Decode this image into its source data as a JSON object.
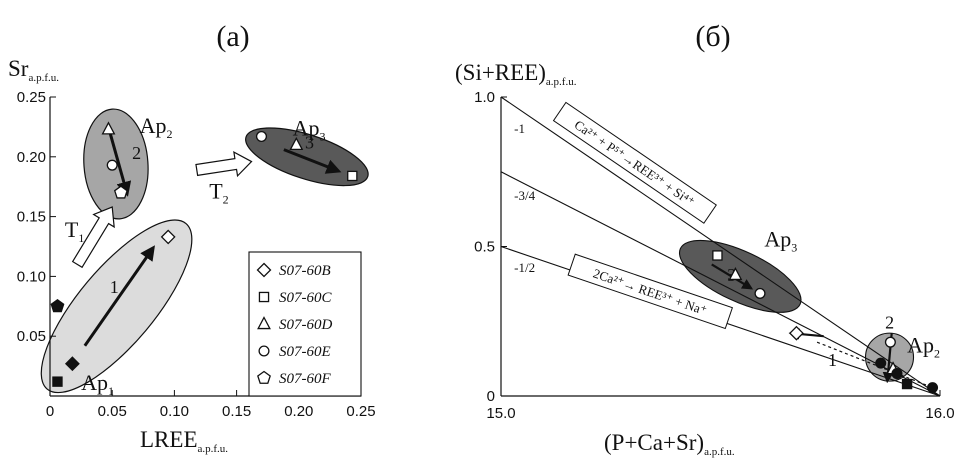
{
  "chart_data": [
    {
      "panel": "(a)",
      "type": "scatter",
      "xlabel": "LREE",
      "xlabel_sub": "a.p.f.u.",
      "ylabel": "Sr",
      "ylabel_sub": "a.p.f.u.",
      "xlim": [
        0,
        0.25
      ],
      "ylim": [
        0,
        0.25
      ],
      "x_ticks": [
        "0",
        "0.05",
        "0.10",
        "0.15",
        "0.20",
        "0.25"
      ],
      "y_ticks": [
        "0.05",
        "0.10",
        "0.15",
        "0.20",
        "0.25"
      ],
      "groups": [
        {
          "name": "Ap",
          "sub": "1",
          "label_at": [
            0.025,
            0.005
          ],
          "fill": "#dcdcdc"
        },
        {
          "name": "Ap",
          "sub": "2",
          "label_at": [
            0.072,
            0.22
          ],
          "fill": "#a6a6a6"
        },
        {
          "name": "Ap",
          "sub": "3",
          "label_at": [
            0.195,
            0.218
          ],
          "fill": "#595959"
        }
      ],
      "series": [
        {
          "name": "S07-60B",
          "marker": "diamond",
          "points": [
            [
              0.095,
              0.133
            ]
          ]
        },
        {
          "name": "S07-60C",
          "marker": "square",
          "points": [
            [
              0.243,
              0.184
            ]
          ]
        },
        {
          "name": "S07-60D",
          "marker": "triangle",
          "points": [
            [
              0.047,
              0.223
            ],
            [
              0.198,
              0.21
            ]
          ]
        },
        {
          "name": "S07-60E",
          "marker": "circle",
          "points": [
            [
              0.05,
              0.193
            ],
            [
              0.17,
              0.217
            ]
          ]
        },
        {
          "name": "S07-60F",
          "marker": "pentagon",
          "points": [
            [
              0.057,
              0.17
            ]
          ]
        }
      ],
      "filled_points": [
        {
          "marker": "pentagon",
          "x": 0.006,
          "y": 0.075
        },
        {
          "marker": "diamond",
          "x": 0.018,
          "y": 0.027
        },
        {
          "marker": "square",
          "x": 0.006,
          "y": 0.012
        }
      ],
      "trends": [
        {
          "label": "1",
          "from": [
            0.028,
            0.042
          ],
          "to": [
            0.083,
            0.124
          ]
        },
        {
          "label": "2",
          "from": [
            0.048,
            0.221
          ],
          "to": [
            0.062,
            0.169
          ]
        },
        {
          "label": "3",
          "from": [
            0.188,
            0.206
          ],
          "to": [
            0.232,
            0.188
          ]
        }
      ],
      "transitions": [
        {
          "label": "T",
          "sub": "1",
          "from": [
            0.022,
            0.11
          ],
          "to": [
            0.05,
            0.158
          ]
        },
        {
          "label": "T",
          "sub": "2",
          "from": [
            0.118,
            0.189
          ],
          "to": [
            0.162,
            0.196
          ]
        }
      ],
      "legend": "lower-right"
    },
    {
      "panel": "(б)",
      "type": "scatter",
      "xlabel": "(P+Ca+Sr)",
      "xlabel_sub": "a.p.f.u.",
      "ylabel": "(Si+REE)",
      "ylabel_sub": "a.p.f.u.",
      "xlim": [
        15.0,
        16.0
      ],
      "ylim": [
        0,
        1.0
      ],
      "x_ticks": [
        "15.0",
        "16.0"
      ],
      "y_ticks": [
        "0",
        "0.5",
        "1.0"
      ],
      "lines": [
        {
          "slope_label": "-1",
          "from": [
            15.0,
            1.0
          ],
          "to": [
            16.0,
            0.0
          ]
        },
        {
          "slope_label": "-3/4",
          "from": [
            15.0,
            0.75
          ],
          "to": [
            16.0,
            0.0
          ]
        },
        {
          "slope_label": "-1/2",
          "from": [
            15.0,
            0.5
          ],
          "to": [
            16.0,
            0.0
          ]
        }
      ],
      "equations": [
        {
          "text": "Ca²⁺ + P⁵⁺→REE³⁺ + Si⁴⁺"
        },
        {
          "text": "2Ca²⁺→ REE³⁺ + Na⁺"
        }
      ],
      "groups": [
        {
          "name": "Ap",
          "sub": "3",
          "fill": "#595959"
        },
        {
          "name": "Ap",
          "sub": "2",
          "fill": "#a6a6a6"
        }
      ],
      "points": [
        {
          "marker": "square",
          "x": 15.493,
          "y": 0.47
        },
        {
          "marker": "triangle",
          "x": 15.534,
          "y": 0.405
        },
        {
          "marker": "circle",
          "x": 15.59,
          "y": 0.343
        },
        {
          "marker": "diamond",
          "x": 15.673,
          "y": 0.21
        },
        {
          "marker": "circle",
          "x": 15.887,
          "y": 0.18
        },
        {
          "marker": "circle",
          "x": 15.865,
          "y": 0.11
        },
        {
          "marker": "triangle",
          "x": 15.893,
          "y": 0.09
        },
        {
          "marker": "circle",
          "x": 15.902,
          "y": 0.075
        },
        {
          "marker": "square",
          "x": 15.925,
          "y": 0.04
        },
        {
          "marker": "circle",
          "x": 15.983,
          "y": 0.028
        }
      ],
      "trends": [
        {
          "label": "3",
          "from": [
            15.48,
            0.44
          ],
          "to": [
            15.57,
            0.36
          ]
        },
        {
          "label": "2",
          "from": [
            15.89,
            0.21
          ],
          "to": [
            15.88,
            0.05
          ]
        },
        {
          "label": "1",
          "from": [
            15.735,
            0.2
          ],
          "to": [
            15.66,
            0.21
          ]
        }
      ]
    }
  ]
}
